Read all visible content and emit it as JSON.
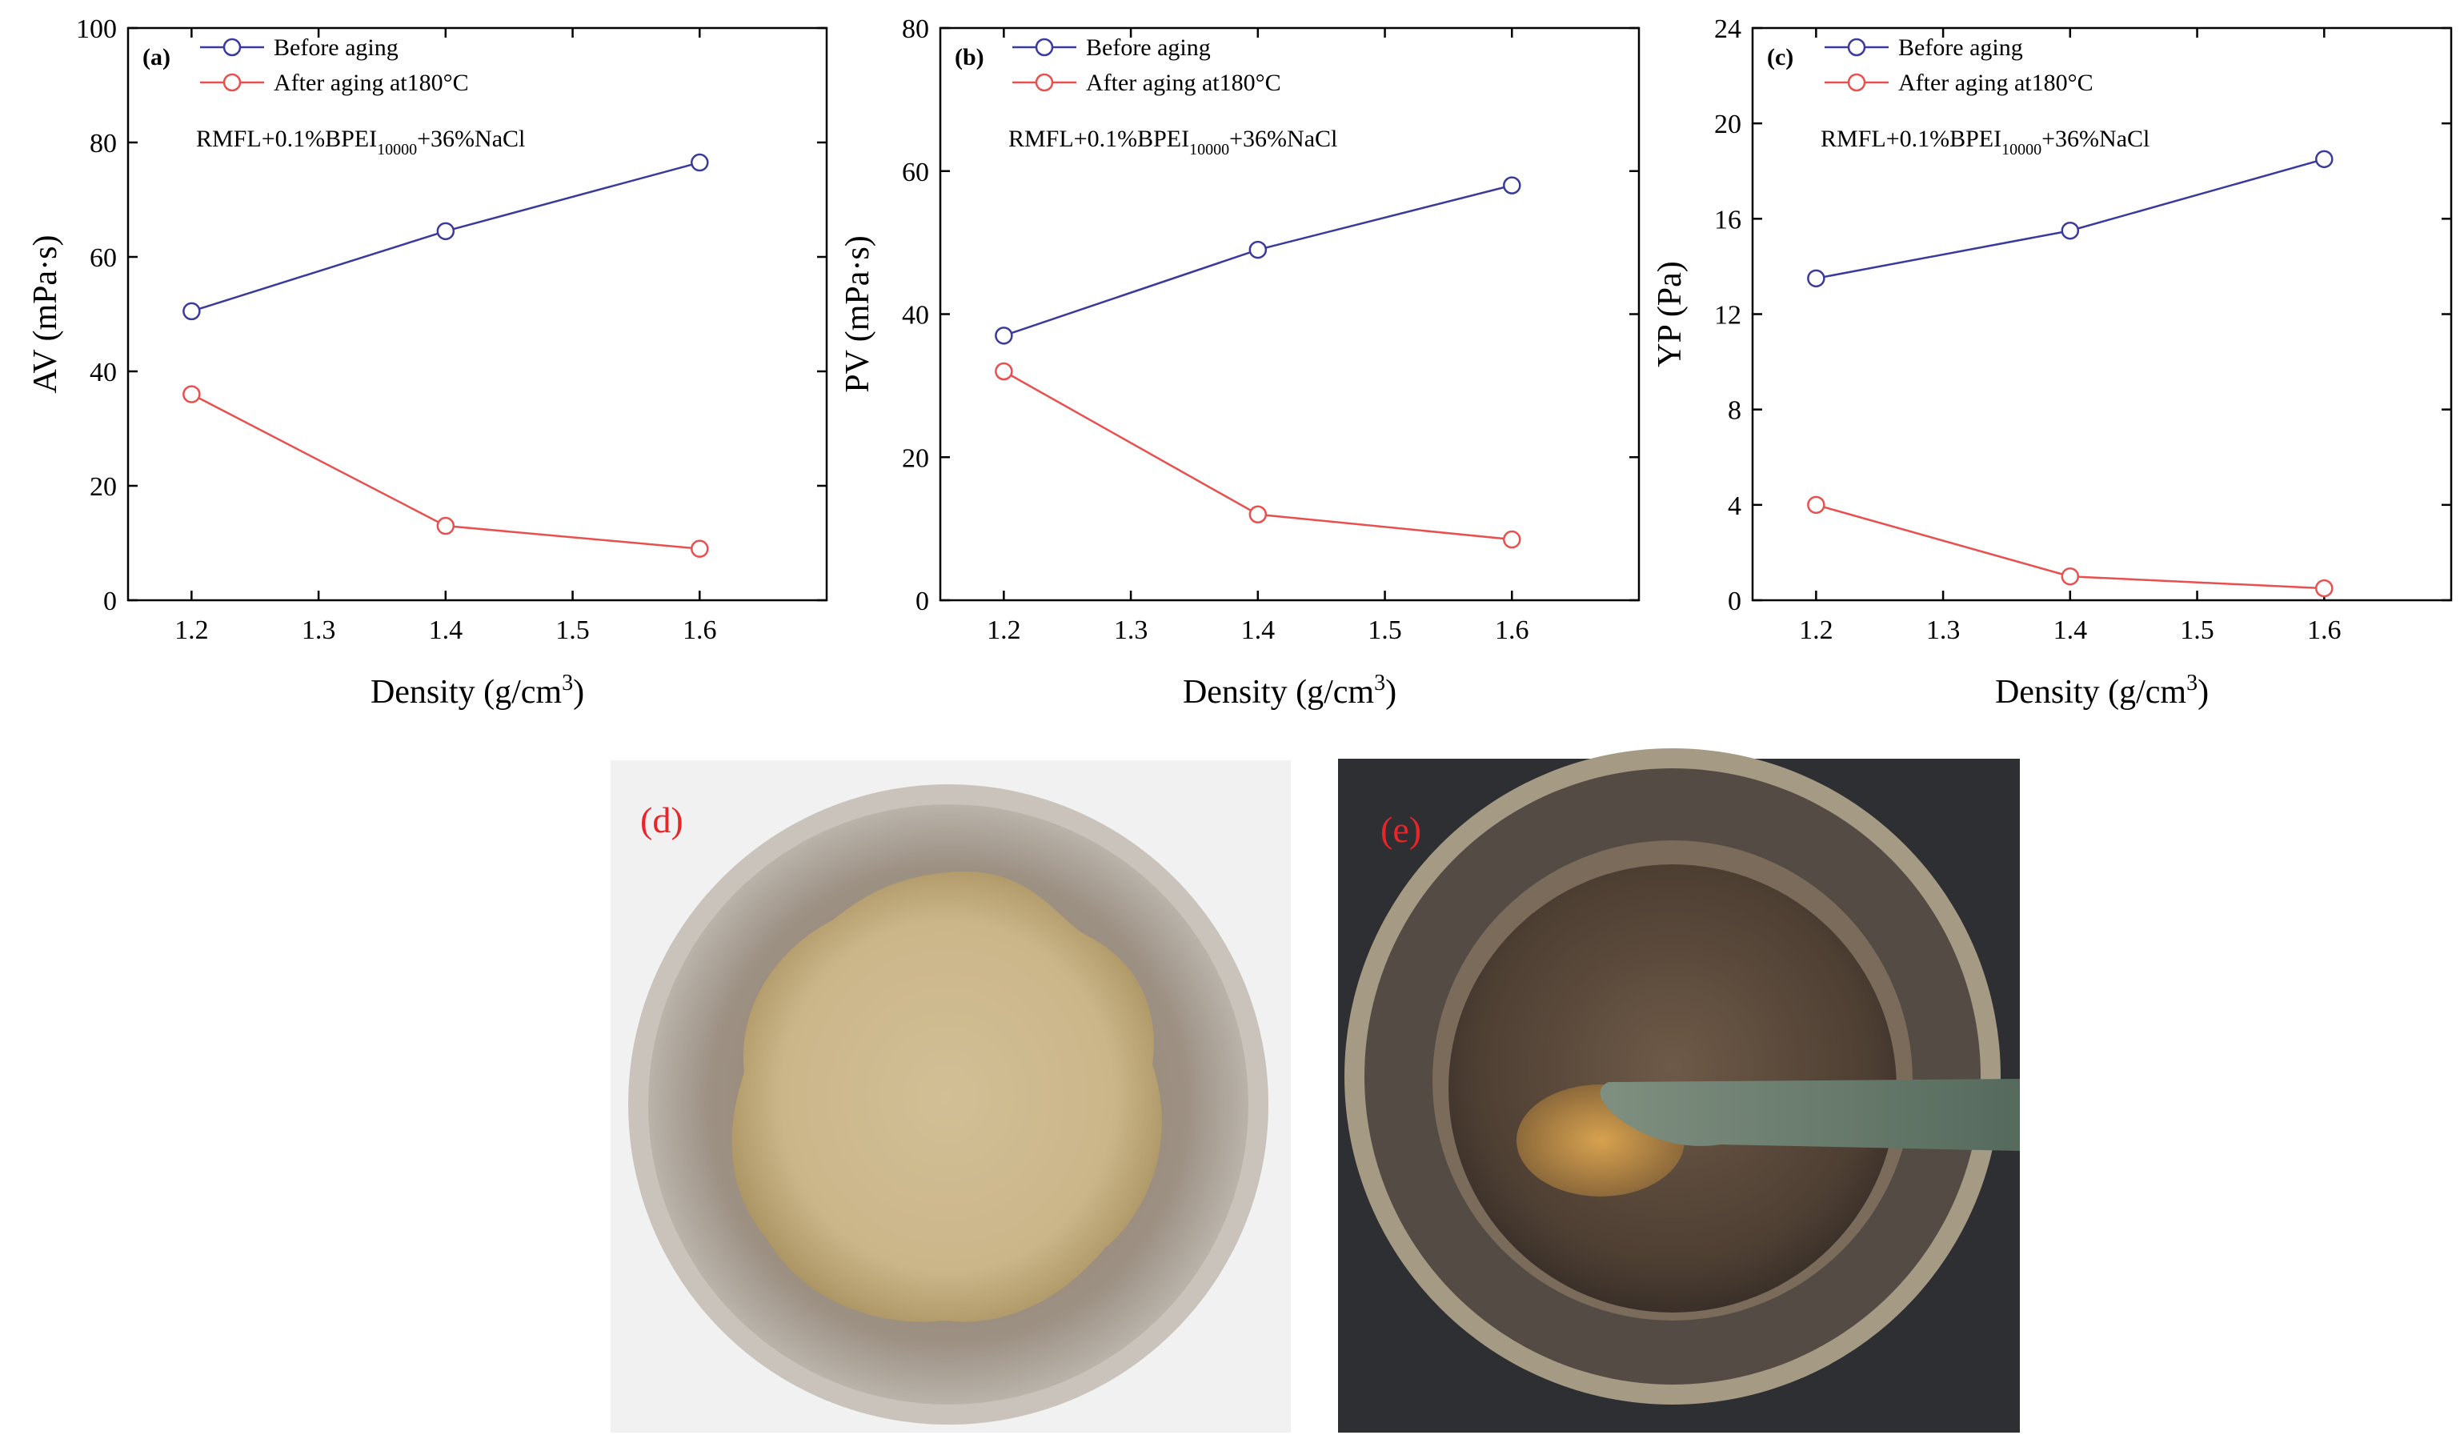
{
  "chart_data": [
    {
      "type": "line",
      "panel_label": "(a)",
      "annotation": {
        "main": "RMFL+0.1%BPEI",
        "sub": "10000",
        "rest": "+36%NaCl"
      },
      "xlabel": "Density (g/cm",
      "xlabel_sup": "3",
      "xlabel_end": ")",
      "ylabel": "AV (mPa·s)",
      "xlim": [
        1.15,
        1.7
      ],
      "ylim": [
        0,
        100
      ],
      "xticks": [
        1.2,
        1.3,
        1.4,
        1.5,
        1.6
      ],
      "xticklabels": [
        "1.2",
        "1.3",
        "1.4",
        "1.5",
        "1.6"
      ],
      "yticks": [
        0,
        20,
        40,
        60,
        80,
        100
      ],
      "yticklabels": [
        "0",
        "20",
        "40",
        "60",
        "80",
        "100"
      ],
      "x": [
        1.2,
        1.4,
        1.6
      ],
      "series": [
        {
          "name": "Before aging",
          "color": "#3a3a9c",
          "values": [
            50.5,
            64.5,
            76.5
          ]
        },
        {
          "name": "After aging at180°C",
          "color": "#e8504f",
          "values": [
            36,
            13,
            9
          ]
        }
      ]
    },
    {
      "type": "line",
      "panel_label": "(b)",
      "annotation": {
        "main": "RMFL+0.1%BPEI",
        "sub": "10000",
        "rest": "+36%NaCl"
      },
      "xlabel": "Density (g/cm",
      "xlabel_sup": "3",
      "xlabel_end": ")",
      "ylabel": "PV (mPa·s)",
      "xlim": [
        1.15,
        1.7
      ],
      "ylim": [
        0,
        80
      ],
      "xticks": [
        1.2,
        1.3,
        1.4,
        1.5,
        1.6
      ],
      "xticklabels": [
        "1.2",
        "1.3",
        "1.4",
        "1.5",
        "1.6"
      ],
      "yticks": [
        0,
        20,
        40,
        60,
        80
      ],
      "yticklabels": [
        "0",
        "20",
        "40",
        "60",
        "80"
      ],
      "x": [
        1.2,
        1.4,
        1.6
      ],
      "series": [
        {
          "name": "Before aging",
          "color": "#3a3a9c",
          "values": [
            37,
            49,
            58
          ]
        },
        {
          "name": "After aging at180°C",
          "color": "#e8504f",
          "values": [
            32,
            12,
            8.5
          ]
        }
      ]
    },
    {
      "type": "line",
      "panel_label": "(c)",
      "annotation": {
        "main": "RMFL+0.1%BPEI",
        "sub": "10000",
        "rest": "+36%NaCl"
      },
      "xlabel": "Density (g/cm",
      "xlabel_sup": "3",
      "xlabel_end": ")",
      "ylabel": "YP (Pa)",
      "xlim": [
        1.15,
        1.7
      ],
      "ylim": [
        0,
        24
      ],
      "xticks": [
        1.2,
        1.3,
        1.4,
        1.5,
        1.6
      ],
      "xticklabels": [
        "1.2",
        "1.3",
        "1.4",
        "1.5",
        "1.6"
      ],
      "yticks": [
        0,
        4,
        8,
        12,
        16,
        20,
        24
      ],
      "yticklabels": [
        "0",
        "4",
        "8",
        "12",
        "16",
        "20",
        "24"
      ],
      "x": [
        1.2,
        1.4,
        1.6
      ],
      "series": [
        {
          "name": "Before aging",
          "color": "#3a3a9c",
          "values": [
            13.5,
            15.5,
            18.5
          ]
        },
        {
          "name": "After aging at180°C",
          "color": "#e8504f",
          "values": [
            4,
            1,
            0.5
          ]
        }
      ]
    }
  ],
  "photos": [
    {
      "label": "(d)",
      "label_color": "#e8262a"
    },
    {
      "label": "(e)",
      "label_color": "#e8262a"
    }
  ]
}
